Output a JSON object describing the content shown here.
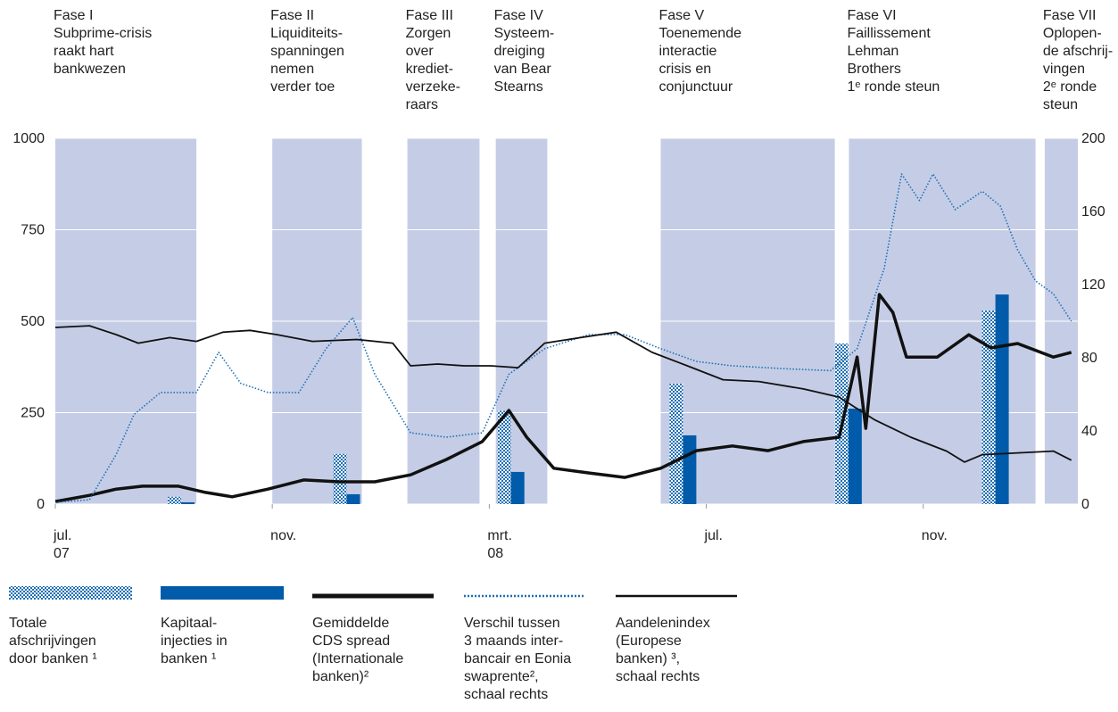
{
  "chart_data": {
    "type": "combo",
    "xlim": [
      0,
      18.85
    ],
    "xticks": [
      {
        "value": 0,
        "label": "jul.\n07"
      },
      {
        "value": 4,
        "label": "nov."
      },
      {
        "value": 8,
        "label": "mrt.\n08"
      },
      {
        "value": 12,
        "label": "jul."
      },
      {
        "value": 16,
        "label": "nov."
      }
    ],
    "ylim": [
      0,
      1000
    ],
    "yticks": [
      0,
      250,
      500,
      750,
      1000
    ],
    "y2lim": [
      0,
      200
    ],
    "y2ticks": [
      0,
      40,
      80,
      120,
      160,
      200
    ],
    "grid": true,
    "phases": [
      {
        "label": "Fase I\nSubprime-crisis\nraakt hart\nbankwezen",
        "start": 0,
        "end": 2.6
      },
      {
        "label": "Fase II\nLiquiditeits-\nspanningen\nnemen\nverder toe",
        "start": 4.0,
        "end": 5.65
      },
      {
        "label": "Fase III\nZorgen\nover\nkrediet-\nverzeke-\nraars",
        "start": 6.49,
        "end": 7.82
      },
      {
        "label": "Fase IV\nSysteem-\ndreiging\nvan Bear\nStearns",
        "start": 8.12,
        "end": 9.07
      },
      {
        "label": "Fase V\nToenemende\ninteractie\ncrisis en\nconjunctuur",
        "start": 11.16,
        "end": 14.37
      },
      {
        "label": "Fase VI\nFaillissement\nLehman\nBrothers\n1ᵉ ronde steun",
        "start": 14.63,
        "end": 18.07
      },
      {
        "label": "Fase VII\nOplopen-\nde afschrij-\nvingen\n2ᵉ ronde\nsteun",
        "start": 18.24,
        "end": 18.85
      }
    ],
    "series": [
      {
        "name": "Totale\nafschrijvingen\ndoor banken ¹",
        "kind": "bar",
        "style": "hatch",
        "color": "#1f6fb5",
        "x": [
          2.32,
          5.37,
          8.4,
          11.57,
          14.62,
          17.33
        ],
        "values": [
          20,
          137,
          255,
          329,
          439,
          529
        ]
      },
      {
        "name": "Kapitaal-\ninjecties in\nbanken ¹",
        "kind": "bar",
        "style": "solid",
        "color": "#005baa",
        "x": [
          2.32,
          5.37,
          8.4,
          11.57,
          14.62,
          17.33
        ],
        "values": [
          5,
          27,
          88,
          188,
          261,
          573
        ]
      },
      {
        "name": "Gemiddelde\nCDS spread\n(Internationale\nbanken)²",
        "kind": "line",
        "style": "thick",
        "color": "#111111",
        "x": [
          0,
          0.63,
          1.12,
          1.61,
          2.27,
          2.77,
          3.26,
          3.92,
          4.58,
          5.23,
          5.89,
          6.55,
          7.21,
          7.87,
          8.36,
          8.69,
          9.19,
          9.84,
          10.5,
          11.16,
          11.82,
          12.48,
          13.14,
          13.79,
          14.45,
          14.78,
          14.94,
          15.19,
          15.44,
          15.69,
          16.26,
          16.84,
          17.25,
          17.74,
          18.4,
          18.73
        ],
        "values": [
          7,
          24,
          41,
          49,
          49,
          32,
          20,
          41,
          66,
          61,
          61,
          80,
          122,
          171,
          256,
          183,
          98,
          85,
          73,
          98,
          146,
          159,
          146,
          171,
          183,
          402,
          207,
          573,
          524,
          402,
          402,
          463,
          427,
          439,
          402,
          415
        ]
      },
      {
        "name": "Verschil tussen\n3 maands inter-\nbancair en Eonia\nswaprente²,\nschaal rechts",
        "kind": "line",
        "style": "dotted",
        "color": "#1f6fb5",
        "axis": "y2",
        "x": [
          0,
          0.63,
          1.12,
          1.45,
          1.94,
          2.6,
          3.01,
          3.42,
          3.92,
          4.49,
          4.99,
          5.48,
          5.89,
          6.55,
          7.21,
          7.87,
          8.36,
          9.02,
          9.84,
          10.5,
          11.16,
          11.82,
          12.48,
          13.47,
          14.29,
          14.78,
          15.28,
          15.6,
          15.93,
          16.18,
          16.59,
          17.09,
          17.42,
          17.74,
          18.07,
          18.4,
          18.73
        ],
        "values": [
          1,
          2.4,
          27,
          49,
          61,
          61,
          83,
          66,
          61,
          61,
          85,
          102,
          71,
          39,
          36.6,
          39,
          71,
          85,
          92.7,
          92.7,
          85,
          78,
          75.6,
          74,
          73,
          85,
          129,
          180.5,
          166,
          180.5,
          161,
          171,
          163,
          139,
          122,
          115,
          100
        ]
      },
      {
        "name": "Aandelenindex\n(Europese\nbanken) ³,\nschaal rechts",
        "kind": "line",
        "style": "thin",
        "color": "#111111",
        "axis": "y2",
        "x": [
          0,
          0.63,
          1.12,
          1.53,
          2.11,
          2.6,
          3.09,
          3.59,
          4.08,
          4.74,
          5.56,
          6.22,
          6.55,
          7.05,
          7.54,
          8.03,
          8.53,
          9.02,
          9.68,
          10.34,
          11,
          11.65,
          12.31,
          12.97,
          13.79,
          14.45,
          15.11,
          15.77,
          16.43,
          16.76,
          17.09,
          17.74,
          18.4,
          18.73
        ],
        "values": [
          96.6,
          97.5,
          92.7,
          88,
          91,
          89,
          94,
          95,
          92.7,
          89,
          90,
          88,
          75.6,
          76.6,
          75.6,
          75.6,
          74.6,
          88,
          91,
          94,
          83,
          75.6,
          68,
          67,
          63,
          58.5,
          46,
          36.6,
          29,
          23,
          27,
          28,
          29,
          24
        ]
      }
    ]
  }
}
